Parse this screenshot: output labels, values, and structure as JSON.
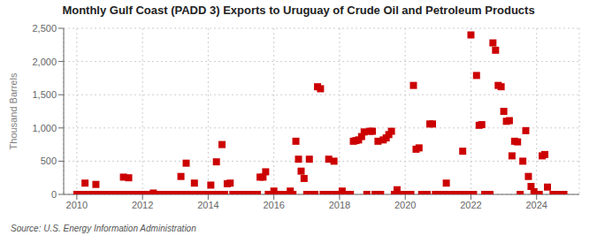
{
  "chart_data": {
    "type": "scatter",
    "title": "Monthly Gulf Coast (PADD 3) Exports to Uruguay of Crude Oil and Petroleum Products",
    "ylabel": "Thousand Barrels",
    "annotations": [
      "Source: U.S. Energy Information Administration"
    ],
    "color": "#cc0000",
    "marker": "square",
    "grid": true,
    "xlim": [
      2009.6,
      2025.3
    ],
    "xticks": [
      2010,
      2012,
      2014,
      2016,
      2018,
      2020,
      2022,
      2024
    ],
    "ylim": [
      0,
      2500
    ],
    "yticks": [
      0,
      500,
      {
        "value": 1000,
        "label": "1,000"
      },
      {
        "value": 1500,
        "label": "1,500"
      },
      {
        "value": 2000,
        "label": "2,000"
      },
      {
        "value": 2500,
        "label": "2,500"
      }
    ],
    "x": [
      2010,
      2010.08,
      2010.17,
      2010.25,
      2010.33,
      2010.42,
      2010.5,
      2010.58,
      2010.67,
      2010.75,
      2010.83,
      2010.92,
      2011,
      2011.08,
      2011.17,
      2011.25,
      2011.33,
      2011.42,
      2011.5,
      2011.58,
      2011.67,
      2011.75,
      2011.83,
      2011.92,
      2012,
      2012.08,
      2012.17,
      2012.25,
      2012.33,
      2012.42,
      2012.5,
      2012.58,
      2012.67,
      2012.75,
      2012.83,
      2012.92,
      2013,
      2013.08,
      2013.17,
      2013.25,
      2013.33,
      2013.42,
      2013.5,
      2013.58,
      2013.67,
      2013.75,
      2013.83,
      2013.92,
      2014,
      2014.08,
      2014.17,
      2014.25,
      2014.33,
      2014.42,
      2014.5,
      2014.58,
      2014.67,
      2014.75,
      2014.83,
      2014.92,
      2015,
      2015.08,
      2015.17,
      2015.25,
      2015.33,
      2015.42,
      2015.5,
      2015.58,
      2015.67,
      2015.75,
      2015.83,
      2015.92,
      2016,
      2016.08,
      2016.17,
      2016.25,
      2016.33,
      2016.42,
      2016.5,
      2016.58,
      2016.67,
      2016.75,
      2016.83,
      2016.92,
      2017,
      2017.08,
      2017.17,
      2017.25,
      2017.33,
      2017.42,
      2017.5,
      2017.58,
      2017.67,
      2017.75,
      2017.83,
      2017.92,
      2018,
      2018.08,
      2018.17,
      2018.25,
      2018.33,
      2018.42,
      2018.5,
      2018.58,
      2018.67,
      2018.75,
      2018.83,
      2018.92,
      2019,
      2019.08,
      2019.17,
      2019.25,
      2019.33,
      2019.42,
      2019.5,
      2019.58,
      2019.67,
      2019.75,
      2019.83,
      2019.92,
      2020,
      2020.08,
      2020.17,
      2020.25,
      2020.33,
      2020.42,
      2020.5,
      2020.58,
      2020.67,
      2020.75,
      2020.83,
      2020.92,
      2021,
      2021.08,
      2021.17,
      2021.25,
      2021.33,
      2021.42,
      2021.5,
      2021.58,
      2021.67,
      2021.75,
      2021.83,
      2021.92,
      2022,
      2022.08,
      2022.17,
      2022.25,
      2022.33,
      2022.42,
      2022.5,
      2022.58,
      2022.67,
      2022.75,
      2022.83,
      2022.92,
      2023,
      2023.08,
      2023.17,
      2023.25,
      2023.33,
      2023.42,
      2023.5,
      2023.58,
      2023.67,
      2023.75,
      2023.83,
      2023.92,
      2024,
      2024.08,
      2024.17,
      2024.25,
      2024.33,
      2024.5,
      2024.58,
      2024.67,
      2024.75,
      2024.83
    ],
    "values": [
      0,
      0,
      0,
      170,
      0,
      0,
      0,
      150,
      0,
      0,
      0,
      0,
      0,
      0,
      0,
      0,
      0,
      260,
      0,
      250,
      0,
      0,
      0,
      0,
      0,
      0,
      0,
      0,
      20,
      0,
      0,
      0,
      0,
      0,
      0,
      0,
      0,
      0,
      270,
      0,
      470,
      0,
      0,
      170,
      0,
      0,
      0,
      0,
      0,
      140,
      0,
      490,
      0,
      750,
      0,
      160,
      170,
      0,
      0,
      0,
      0,
      0,
      0,
      0,
      0,
      0,
      0,
      260,
      260,
      340,
      0,
      0,
      50,
      0,
      0,
      0,
      0,
      0,
      50,
      0,
      800,
      530,
      350,
      240,
      0,
      530,
      0,
      0,
      1620,
      1590,
      0,
      0,
      530,
      0,
      500,
      0,
      0,
      50,
      0,
      0,
      0,
      800,
      810,
      820,
      870,
      940,
      0,
      950,
      950,
      0,
      800,
      0,
      820,
      850,
      900,
      950,
      0,
      70,
      0,
      0,
      0,
      0,
      0,
      1640,
      680,
      700,
      0,
      0,
      0,
      1060,
      1060,
      0,
      0,
      0,
      0,
      170,
      0,
      0,
      0,
      0,
      0,
      650,
      0,
      0,
      2400,
      0,
      1790,
      1040,
      1050,
      0,
      0,
      0,
      2280,
      2170,
      1640,
      1620,
      1250,
      1100,
      1110,
      580,
      800,
      790,
      0,
      500,
      960,
      270,
      120,
      40,
      0,
      0,
      580,
      600,
      110,
      0,
      0,
      0,
      0,
      0
    ]
  }
}
